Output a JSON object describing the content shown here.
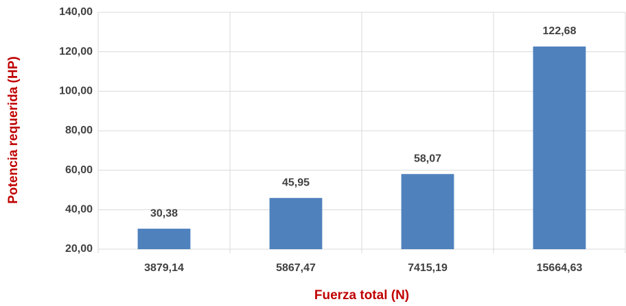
{
  "chart_data": {
    "type": "bar",
    "xlabel": "Fuerza total (N)",
    "ylabel": "Potencia requerida (HP)",
    "categories": [
      "3879,14",
      "5867,47",
      "7415,19",
      "15664,63"
    ],
    "values": [
      30.38,
      45.95,
      58.07,
      122.68
    ],
    "value_labels": [
      "30,38",
      "45,95",
      "58,07",
      "122,68"
    ],
    "color": "#4f81bd",
    "ylim": [
      20,
      140
    ],
    "yticks": [
      {
        "value": 20,
        "label": "20,00"
      },
      {
        "value": 40,
        "label": "40,00"
      },
      {
        "value": 60,
        "label": "60,00"
      },
      {
        "value": 80,
        "label": "80,00"
      },
      {
        "value": 100,
        "label": "100,00"
      },
      {
        "value": 120,
        "label": "120,00"
      },
      {
        "value": 140,
        "label": "140,00"
      }
    ],
    "grid": true
  }
}
